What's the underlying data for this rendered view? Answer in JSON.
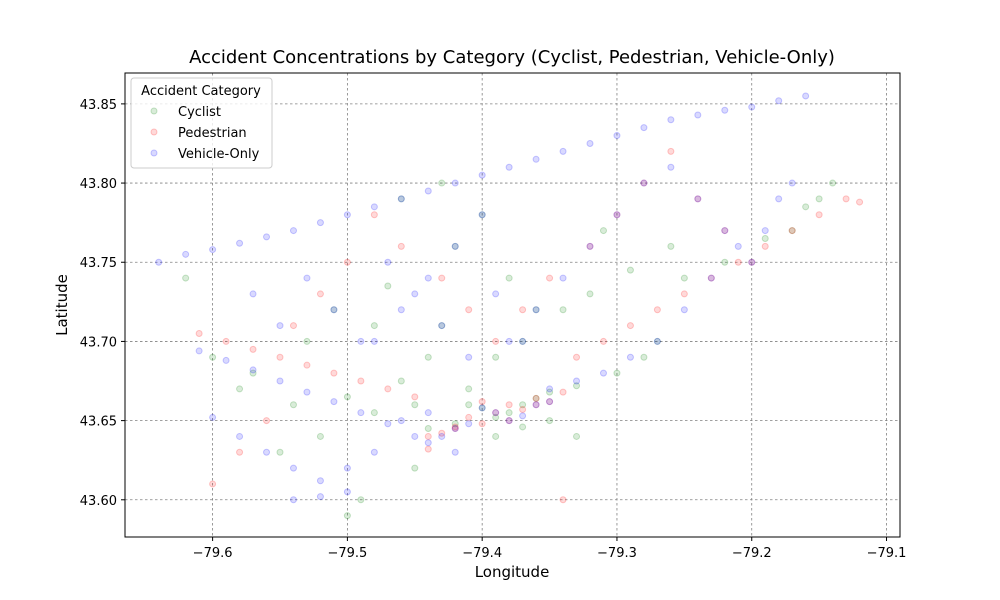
{
  "chart_data": {
    "type": "scatter",
    "title": "Accident Concentrations by Category (Cyclist, Pedestrian, Vehicle-Only)",
    "xlabel": "Longitude",
    "ylabel": "Latitude",
    "xlim": [
      -79.665,
      -79.09
    ],
    "ylim": [
      43.5765,
      43.8695
    ],
    "xticks": [
      -79.6,
      -79.5,
      -79.4,
      -79.3,
      -79.2,
      -79.1
    ],
    "xtick_labels": [
      "−79.6",
      "−79.5",
      "−79.4",
      "−79.3",
      "−79.2",
      "−79.1"
    ],
    "yticks": [
      43.6,
      43.65,
      43.7,
      43.75,
      43.8,
      43.85
    ],
    "ytick_labels": [
      "43.60",
      "43.65",
      "43.70",
      "43.75",
      "43.80",
      "43.85"
    ],
    "grid": true,
    "legend": {
      "title": "Accident Category",
      "placement": "top-left"
    },
    "series": [
      {
        "name": "Cyclist",
        "color": "#008000",
        "alpha": 0.15,
        "x": [
          -79.38,
          -79.39,
          -79.4,
          -79.37,
          -79.42,
          -79.36,
          -79.44,
          -79.35,
          -79.41,
          -79.45,
          -79.48,
          -79.33,
          -79.52,
          -79.55,
          -79.3,
          -79.28,
          -79.46,
          -79.5,
          -79.39,
          -79.37,
          -79.43,
          -79.34,
          -79.32,
          -79.53,
          -79.57,
          -79.47,
          -79.29,
          -79.26,
          -79.31,
          -79.4,
          -79.42,
          -79.38,
          -79.36,
          -79.44,
          -79.48,
          -79.51,
          -79.54,
          -79.35,
          -79.27,
          -79.33,
          -79.49,
          -79.45,
          -79.41,
          -79.39,
          -79.37,
          -79.15,
          -79.14,
          -79.16,
          -79.17,
          -79.19,
          -79.22,
          -79.25,
          -79.58,
          -79.6,
          -79.62,
          -79.5,
          -79.46,
          -79.43
        ],
        "y": [
          43.655,
          43.652,
          43.658,
          43.66,
          43.648,
          43.664,
          43.645,
          43.668,
          43.67,
          43.66,
          43.655,
          43.672,
          43.64,
          43.63,
          43.68,
          43.69,
          43.675,
          43.665,
          43.69,
          43.7,
          43.71,
          43.72,
          43.73,
          43.7,
          43.68,
          43.735,
          43.745,
          43.76,
          43.77,
          43.78,
          43.76,
          43.74,
          43.72,
          43.69,
          43.71,
          43.72,
          43.66,
          43.65,
          43.7,
          43.64,
          43.6,
          43.62,
          43.66,
          43.64,
          43.646,
          43.79,
          43.8,
          43.785,
          43.77,
          43.765,
          43.75,
          43.74,
          43.67,
          43.69,
          43.74,
          43.59,
          43.79,
          43.8
        ]
      },
      {
        "name": "Pedestrian",
        "color": "#ff0000",
        "alpha": 0.15,
        "x": [
          -79.38,
          -79.39,
          -79.4,
          -79.37,
          -79.41,
          -79.36,
          -79.42,
          -79.43,
          -79.35,
          -79.44,
          -79.45,
          -79.34,
          -79.47,
          -79.49,
          -79.51,
          -79.53,
          -79.55,
          -79.57,
          -79.59,
          -79.61,
          -79.33,
          -79.31,
          -79.29,
          -79.27,
          -79.25,
          -79.23,
          -79.21,
          -79.19,
          -79.17,
          -79.15,
          -79.13,
          -79.12,
          -79.39,
          -79.41,
          -79.43,
          -79.46,
          -79.48,
          -79.5,
          -79.52,
          -79.54,
          -79.56,
          -79.58,
          -79.6,
          -79.37,
          -79.35,
          -79.32,
          -79.3,
          -79.28,
          -79.26,
          -79.24,
          -79.22,
          -79.2,
          -79.38,
          -79.4,
          -79.42,
          -79.36,
          -79.44,
          -79.34
        ],
        "y": [
          43.65,
          43.655,
          43.648,
          43.657,
          43.652,
          43.66,
          43.645,
          43.642,
          43.662,
          43.64,
          43.665,
          43.668,
          43.67,
          43.675,
          43.68,
          43.685,
          43.69,
          43.695,
          43.7,
          43.705,
          43.69,
          43.7,
          43.71,
          43.72,
          43.73,
          43.74,
          43.75,
          43.76,
          43.77,
          43.78,
          43.79,
          43.788,
          43.7,
          43.72,
          43.74,
          43.76,
          43.78,
          43.75,
          43.73,
          43.71,
          43.65,
          43.63,
          43.61,
          43.72,
          43.74,
          43.76,
          43.78,
          43.8,
          43.82,
          43.79,
          43.77,
          43.75,
          43.66,
          43.662,
          43.646,
          43.664,
          43.632,
          43.6
        ]
      },
      {
        "name": "Vehicle-Only",
        "color": "#0000ff",
        "alpha": 0.15,
        "x": [
          -79.64,
          -79.62,
          -79.6,
          -79.58,
          -79.56,
          -79.54,
          -79.52,
          -79.5,
          -79.48,
          -79.46,
          -79.44,
          -79.42,
          -79.4,
          -79.38,
          -79.36,
          -79.34,
          -79.32,
          -79.3,
          -79.28,
          -79.26,
          -79.24,
          -79.22,
          -79.2,
          -79.18,
          -79.16,
          -79.39,
          -79.38,
          -79.37,
          -79.4,
          -79.41,
          -79.36,
          -79.42,
          -79.35,
          -79.43,
          -79.44,
          -79.45,
          -79.47,
          -79.49,
          -79.51,
          -79.53,
          -79.55,
          -79.57,
          -79.59,
          -79.61,
          -79.6,
          -79.58,
          -79.56,
          -79.54,
          -79.52,
          -79.5,
          -79.48,
          -79.46,
          -79.44,
          -79.42,
          -79.4,
          -79.38,
          -79.36,
          -79.34,
          -79.32,
          -79.3,
          -79.28,
          -79.26,
          -79.24,
          -79.22,
          -79.2,
          -79.18,
          -79.17,
          -79.19,
          -79.21,
          -79.23,
          -79.25,
          -79.27,
          -79.29,
          -79.31,
          -79.33,
          -79.35,
          -79.37,
          -79.39,
          -79.41,
          -79.43,
          -79.45,
          -79.47,
          -79.49,
          -79.51,
          -79.53,
          -79.55,
          -79.57,
          -79.54,
          -79.52,
          -79.5,
          -79.48,
          -79.46,
          -79.44,
          -79.42
        ],
        "y": [
          43.75,
          43.755,
          43.758,
          43.762,
          43.766,
          43.77,
          43.775,
          43.78,
          43.785,
          43.79,
          43.795,
          43.8,
          43.805,
          43.81,
          43.815,
          43.82,
          43.825,
          43.83,
          43.835,
          43.84,
          43.843,
          43.846,
          43.848,
          43.852,
          43.855,
          43.655,
          43.65,
          43.653,
          43.658,
          43.648,
          43.66,
          43.645,
          43.662,
          43.64,
          43.636,
          43.64,
          43.648,
          43.655,
          43.662,
          43.668,
          43.675,
          43.682,
          43.688,
          43.694,
          43.652,
          43.64,
          43.63,
          43.62,
          43.612,
          43.605,
          43.7,
          43.72,
          43.74,
          43.76,
          43.78,
          43.7,
          43.72,
          43.74,
          43.76,
          43.78,
          43.8,
          43.81,
          43.79,
          43.77,
          43.75,
          43.79,
          43.8,
          43.77,
          43.76,
          43.74,
          43.72,
          43.7,
          43.69,
          43.68,
          43.675,
          43.67,
          43.7,
          43.73,
          43.69,
          43.71,
          43.73,
          43.75,
          43.7,
          43.72,
          43.74,
          43.71,
          43.73,
          43.6,
          43.602,
          43.62,
          43.63,
          43.65,
          43.655,
          43.63
        ]
      }
    ]
  }
}
